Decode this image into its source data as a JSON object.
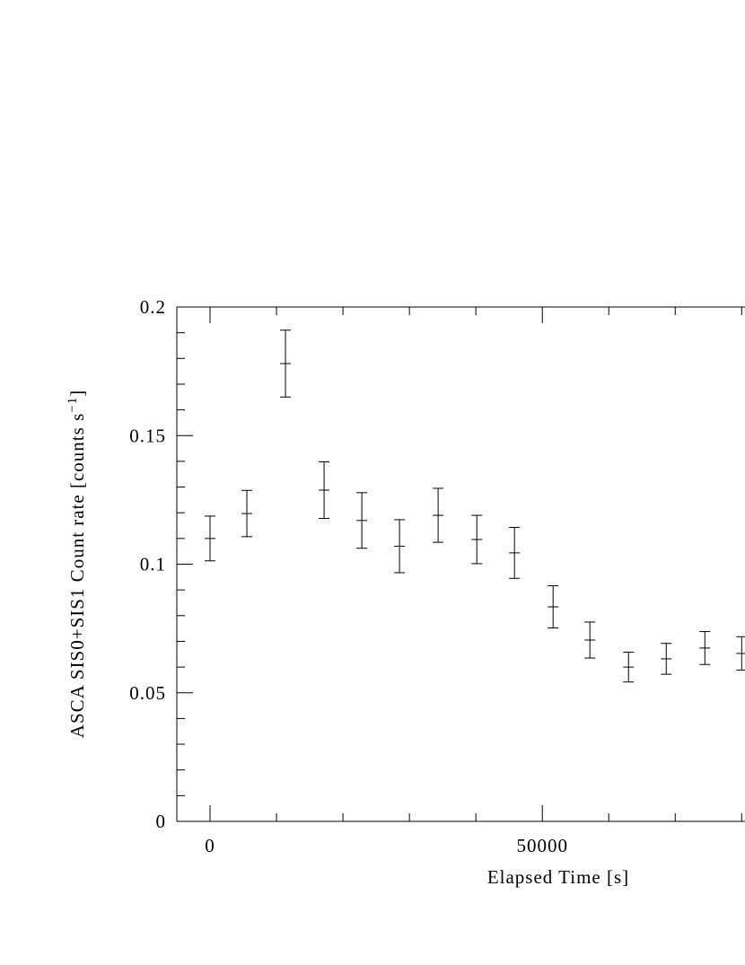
{
  "chart_data": {
    "type": "errorbar",
    "xlabel": "Elapsed Time [s]",
    "ylabel": {
      "text": "ASCA SIS0+SIS1 Count rate [counts s",
      "sup": "−1",
      "end": "]"
    },
    "x": [
      0,
      5540,
      11350,
      17160,
      22840,
      28510,
      34320,
      40140,
      45810,
      51620,
      57160,
      62970,
      68650,
      74460,
      80000
    ],
    "values": [
      0.11,
      0.1197,
      0.178,
      0.1288,
      0.117,
      0.107,
      0.119,
      0.1096,
      0.1044,
      0.0834,
      0.0705,
      0.06,
      0.0632,
      0.0674,
      0.0653
    ],
    "errors": [
      0.0087,
      0.009,
      0.013,
      0.011,
      0.0108,
      0.0103,
      0.0105,
      0.0094,
      0.0099,
      0.0082,
      0.007,
      0.0058,
      0.006,
      0.0064,
      0.0065
    ],
    "color": "#000000",
    "xlim": [
      -5000,
      80500
    ],
    "ylim": [
      0,
      0.2
    ],
    "xticks": [
      0,
      50000
    ],
    "xminorticks": [
      10000,
      20000,
      30000,
      40000,
      60000,
      70000,
      80000
    ],
    "yticks": [
      0,
      0.05,
      0.1,
      0.15,
      0.2
    ],
    "yminorticks": [
      0.01,
      0.02,
      0.03,
      0.04,
      0.06,
      0.07,
      0.08,
      0.09,
      0.11,
      0.12,
      0.13,
      0.14,
      0.16,
      0.17,
      0.18,
      0.19
    ]
  }
}
